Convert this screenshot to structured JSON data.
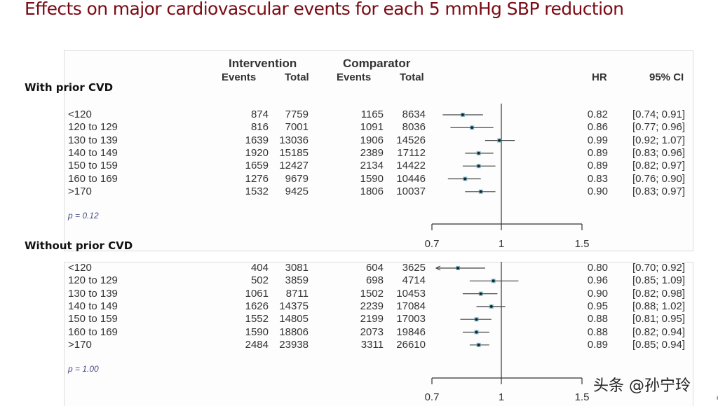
{
  "title": "Effects on major cardiovascular events for each 5 mmHg SBP reduction",
  "headers": {
    "intervention": "Intervention",
    "comparator": "Comparator",
    "events": "Events",
    "total": "Total",
    "hr": "HR",
    "ci": "95% CI"
  },
  "watermark": "头条 @孙宁玲",
  "chart_data": [
    {
      "type": "forest",
      "title": "With prior CVD",
      "p_value": "p = 0.12",
      "xscale": "log",
      "xlim": [
        0.7,
        1.5
      ],
      "xticks": [
        "0.7",
        "1",
        "1.5"
      ],
      "reference_line": 1,
      "rows": [
        {
          "label": "<120",
          "int_events": "874",
          "int_total": "7759",
          "comp_events": "1165",
          "comp_total": "8634",
          "hr": 0.82,
          "lo": 0.74,
          "hi": 0.91,
          "hr_text": "0.82",
          "ci_text": "[0.74; 0.91]"
        },
        {
          "label": "120 to 129",
          "int_events": "816",
          "int_total": "7001",
          "comp_events": "1091",
          "comp_total": "8036",
          "hr": 0.86,
          "lo": 0.77,
          "hi": 0.96,
          "hr_text": "0.86",
          "ci_text": "[0.77; 0.96]"
        },
        {
          "label": "130 to 139",
          "int_events": "1639",
          "int_total": "13036",
          "comp_events": "1906",
          "comp_total": "14526",
          "hr": 0.99,
          "lo": 0.92,
          "hi": 1.07,
          "hr_text": "0.99",
          "ci_text": "[0.92; 1.07]"
        },
        {
          "label": "140 to 149",
          "int_events": "1920",
          "int_total": "15185",
          "comp_events": "2389",
          "comp_total": "17112",
          "hr": 0.89,
          "lo": 0.83,
          "hi": 0.96,
          "hr_text": "0.89",
          "ci_text": "[0.83; 0.96]"
        },
        {
          "label": "150 to 159",
          "int_events": "1659",
          "int_total": "12427",
          "comp_events": "2134",
          "comp_total": "14422",
          "hr": 0.89,
          "lo": 0.82,
          "hi": 0.97,
          "hr_text": "0.89",
          "ci_text": "[0.82; 0.97]"
        },
        {
          "label": "160 to 169",
          "int_events": "1276",
          "int_total": "9679",
          "comp_events": "1590",
          "comp_total": "10446",
          "hr": 0.83,
          "lo": 0.76,
          "hi": 0.9,
          "hr_text": "0.83",
          "ci_text": "[0.76; 0.90]"
        },
        {
          "label": ">170",
          "int_events": "1532",
          "int_total": "9425",
          "comp_events": "1806",
          "comp_total": "10037",
          "hr": 0.9,
          "lo": 0.83,
          "hi": 0.97,
          "hr_text": "0.90",
          "ci_text": "[0.83; 0.97]"
        }
      ]
    },
    {
      "type": "forest",
      "title": "Without  prior CVD",
      "p_value": "p = 1.00",
      "xscale": "log",
      "xlim": [
        0.7,
        1.5
      ],
      "xticks": [
        "0.7",
        "1",
        "1.5"
      ],
      "reference_line": 1,
      "rows": [
        {
          "label": "<120",
          "int_events": "404",
          "int_total": "3081",
          "comp_events": "604",
          "comp_total": "3625",
          "hr": 0.8,
          "lo": 0.7,
          "hi": 0.92,
          "hr_text": "0.80",
          "ci_text": "[0.70; 0.92]",
          "arrow_left": true
        },
        {
          "label": "120 to 129",
          "int_events": "502",
          "int_total": "3859",
          "comp_events": "698",
          "comp_total": "4714",
          "hr": 0.96,
          "lo": 0.85,
          "hi": 1.09,
          "hr_text": "0.96",
          "ci_text": "[0.85; 1.09]"
        },
        {
          "label": "130 to 139",
          "int_events": "1061",
          "int_total": "8711",
          "comp_events": "1502",
          "comp_total": "10453",
          "hr": 0.9,
          "lo": 0.82,
          "hi": 0.98,
          "hr_text": "0.90",
          "ci_text": "[0.82; 0.98]"
        },
        {
          "label": "140 to 149",
          "int_events": "1626",
          "int_total": "14375",
          "comp_events": "2239",
          "comp_total": "17084",
          "hr": 0.95,
          "lo": 0.88,
          "hi": 1.02,
          "hr_text": "0.95",
          "ci_text": "[0.88; 1.02]"
        },
        {
          "label": "150 to 159",
          "int_events": "1552",
          "int_total": "14805",
          "comp_events": "2199",
          "comp_total": "17003",
          "hr": 0.88,
          "lo": 0.81,
          "hi": 0.95,
          "hr_text": "0.88",
          "ci_text": "[0.81; 0.95]"
        },
        {
          "label": "160 to 169",
          "int_events": "1590",
          "int_total": "18806",
          "comp_events": "2073",
          "comp_total": "19846",
          "hr": 0.88,
          "lo": 0.82,
          "hi": 0.94,
          "hr_text": "0.88",
          "ci_text": "[0.82; 0.94]"
        },
        {
          "label": ">170",
          "int_events": "2484",
          "int_total": "23938",
          "comp_events": "3311",
          "comp_total": "26610",
          "hr": 0.89,
          "lo": 0.85,
          "hi": 0.94,
          "hr_text": "0.89",
          "ci_text": "[0.85; 0.94]"
        }
      ]
    }
  ]
}
